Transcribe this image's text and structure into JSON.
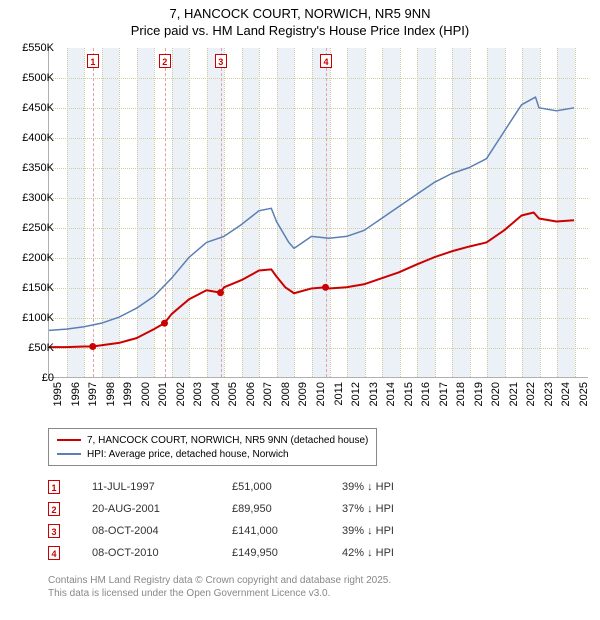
{
  "title": {
    "line1": "7, HANCOCK COURT, NORWICH, NR5 9NN",
    "line2": "Price paid vs. HM Land Registry's House Price Index (HPI)"
  },
  "chart": {
    "type": "line",
    "background_color": "#ffffff",
    "grid_color": "#d0cca0",
    "band_color": "#dbe5ef",
    "axis_color": "#b0b0b0",
    "x_min": 1995,
    "x_max": 2025.8,
    "y_min": 0,
    "y_max": 550000,
    "y_ticks": [
      0,
      50000,
      100000,
      150000,
      200000,
      250000,
      300000,
      350000,
      400000,
      450000,
      500000,
      550000
    ],
    "y_tick_labels": [
      "£0",
      "£50K",
      "£100K",
      "£150K",
      "£200K",
      "£250K",
      "£300K",
      "£350K",
      "£400K",
      "£450K",
      "£500K",
      "£550K"
    ],
    "x_ticks": [
      1995,
      1996,
      1997,
      1998,
      1999,
      2000,
      2001,
      2002,
      2003,
      2004,
      2005,
      2006,
      2007,
      2008,
      2009,
      2010,
      2011,
      2012,
      2013,
      2014,
      2015,
      2016,
      2017,
      2018,
      2019,
      2020,
      2021,
      2022,
      2023,
      2024,
      2025
    ],
    "x_tick_labels": [
      "1995",
      "1996",
      "1997",
      "1998",
      "1999",
      "2000",
      "2001",
      "2002",
      "2003",
      "2004",
      "2005",
      "2006",
      "2007",
      "2008",
      "2009",
      "2010",
      "2011",
      "2012",
      "2013",
      "2014",
      "2015",
      "2016",
      "2017",
      "2018",
      "2019",
      "2020",
      "2021",
      "2022",
      "2023",
      "2024",
      "2025"
    ],
    "series": [
      {
        "name": "property",
        "label": "7, HANCOCK COURT, NORWICH, NR5 9NN (detached house)",
        "color": "#cc0000",
        "width": 2,
        "points": [
          [
            1995,
            50000
          ],
          [
            1996,
            50000
          ],
          [
            1997,
            51000
          ],
          [
            1997.5,
            51000
          ],
          [
            1998,
            53000
          ],
          [
            1999,
            57000
          ],
          [
            2000,
            65000
          ],
          [
            2001,
            80000
          ],
          [
            2001.6,
            89950
          ],
          [
            2002,
            105000
          ],
          [
            2003,
            130000
          ],
          [
            2004,
            145000
          ],
          [
            2004.8,
            141000
          ],
          [
            2005,
            150000
          ],
          [
            2006,
            162000
          ],
          [
            2007,
            178000
          ],
          [
            2007.7,
            180000
          ],
          [
            2008,
            168000
          ],
          [
            2008.5,
            150000
          ],
          [
            2009,
            140000
          ],
          [
            2010,
            148000
          ],
          [
            2010.8,
            149950
          ],
          [
            2011,
            148000
          ],
          [
            2012,
            150000
          ],
          [
            2013,
            155000
          ],
          [
            2014,
            165000
          ],
          [
            2015,
            175000
          ],
          [
            2016,
            188000
          ],
          [
            2017,
            200000
          ],
          [
            2018,
            210000
          ],
          [
            2019,
            218000
          ],
          [
            2020,
            225000
          ],
          [
            2021,
            245000
          ],
          [
            2022,
            270000
          ],
          [
            2022.7,
            275000
          ],
          [
            2023,
            265000
          ],
          [
            2024,
            260000
          ],
          [
            2025,
            262000
          ]
        ]
      },
      {
        "name": "hpi",
        "label": "HPI: Average price, detached house, Norwich",
        "color": "#5b7fb5",
        "width": 1.5,
        "points": [
          [
            1995,
            78000
          ],
          [
            1996,
            80000
          ],
          [
            1997,
            84000
          ],
          [
            1998,
            90000
          ],
          [
            1999,
            100000
          ],
          [
            2000,
            115000
          ],
          [
            2001,
            135000
          ],
          [
            2002,
            165000
          ],
          [
            2003,
            200000
          ],
          [
            2004,
            225000
          ],
          [
            2005,
            235000
          ],
          [
            2006,
            255000
          ],
          [
            2007,
            278000
          ],
          [
            2007.7,
            282000
          ],
          [
            2008,
            260000
          ],
          [
            2008.7,
            225000
          ],
          [
            2009,
            215000
          ],
          [
            2010,
            235000
          ],
          [
            2011,
            232000
          ],
          [
            2012,
            235000
          ],
          [
            2013,
            245000
          ],
          [
            2014,
            265000
          ],
          [
            2015,
            285000
          ],
          [
            2016,
            305000
          ],
          [
            2017,
            325000
          ],
          [
            2018,
            340000
          ],
          [
            2019,
            350000
          ],
          [
            2020,
            365000
          ],
          [
            2021,
            410000
          ],
          [
            2022,
            455000
          ],
          [
            2022.8,
            468000
          ],
          [
            2023,
            450000
          ],
          [
            2024,
            445000
          ],
          [
            2025,
            450000
          ]
        ]
      }
    ],
    "markers": [
      {
        "n": "1",
        "x": 1997.5,
        "y": 51000
      },
      {
        "n": "2",
        "x": 2001.6,
        "y": 89950
      },
      {
        "n": "3",
        "x": 2004.8,
        "y": 141000
      },
      {
        "n": "4",
        "x": 2010.8,
        "y": 149950
      }
    ],
    "marker_box_color": "#cc0000",
    "marker_dot_color": "#cc0000"
  },
  "legend": {
    "items": [
      {
        "color": "#cc0000",
        "width": 2,
        "label": "7, HANCOCK COURT, NORWICH, NR5 9NN (detached house)"
      },
      {
        "color": "#5b7fb5",
        "width": 1.5,
        "label": "HPI: Average price, detached house, Norwich"
      }
    ]
  },
  "sales": [
    {
      "n": "1",
      "date": "11-JUL-1997",
      "price": "£51,000",
      "delta": "39% ↓ HPI"
    },
    {
      "n": "2",
      "date": "20-AUG-2001",
      "price": "£89,950",
      "delta": "37% ↓ HPI"
    },
    {
      "n": "3",
      "date": "08-OCT-2004",
      "price": "£141,000",
      "delta": "39% ↓ HPI"
    },
    {
      "n": "4",
      "date": "08-OCT-2010",
      "price": "£149,950",
      "delta": "42% ↓ HPI"
    }
  ],
  "footer": {
    "line1": "Contains HM Land Registry data © Crown copyright and database right 2025.",
    "line2": "This data is licensed under the Open Government Licence v3.0."
  }
}
